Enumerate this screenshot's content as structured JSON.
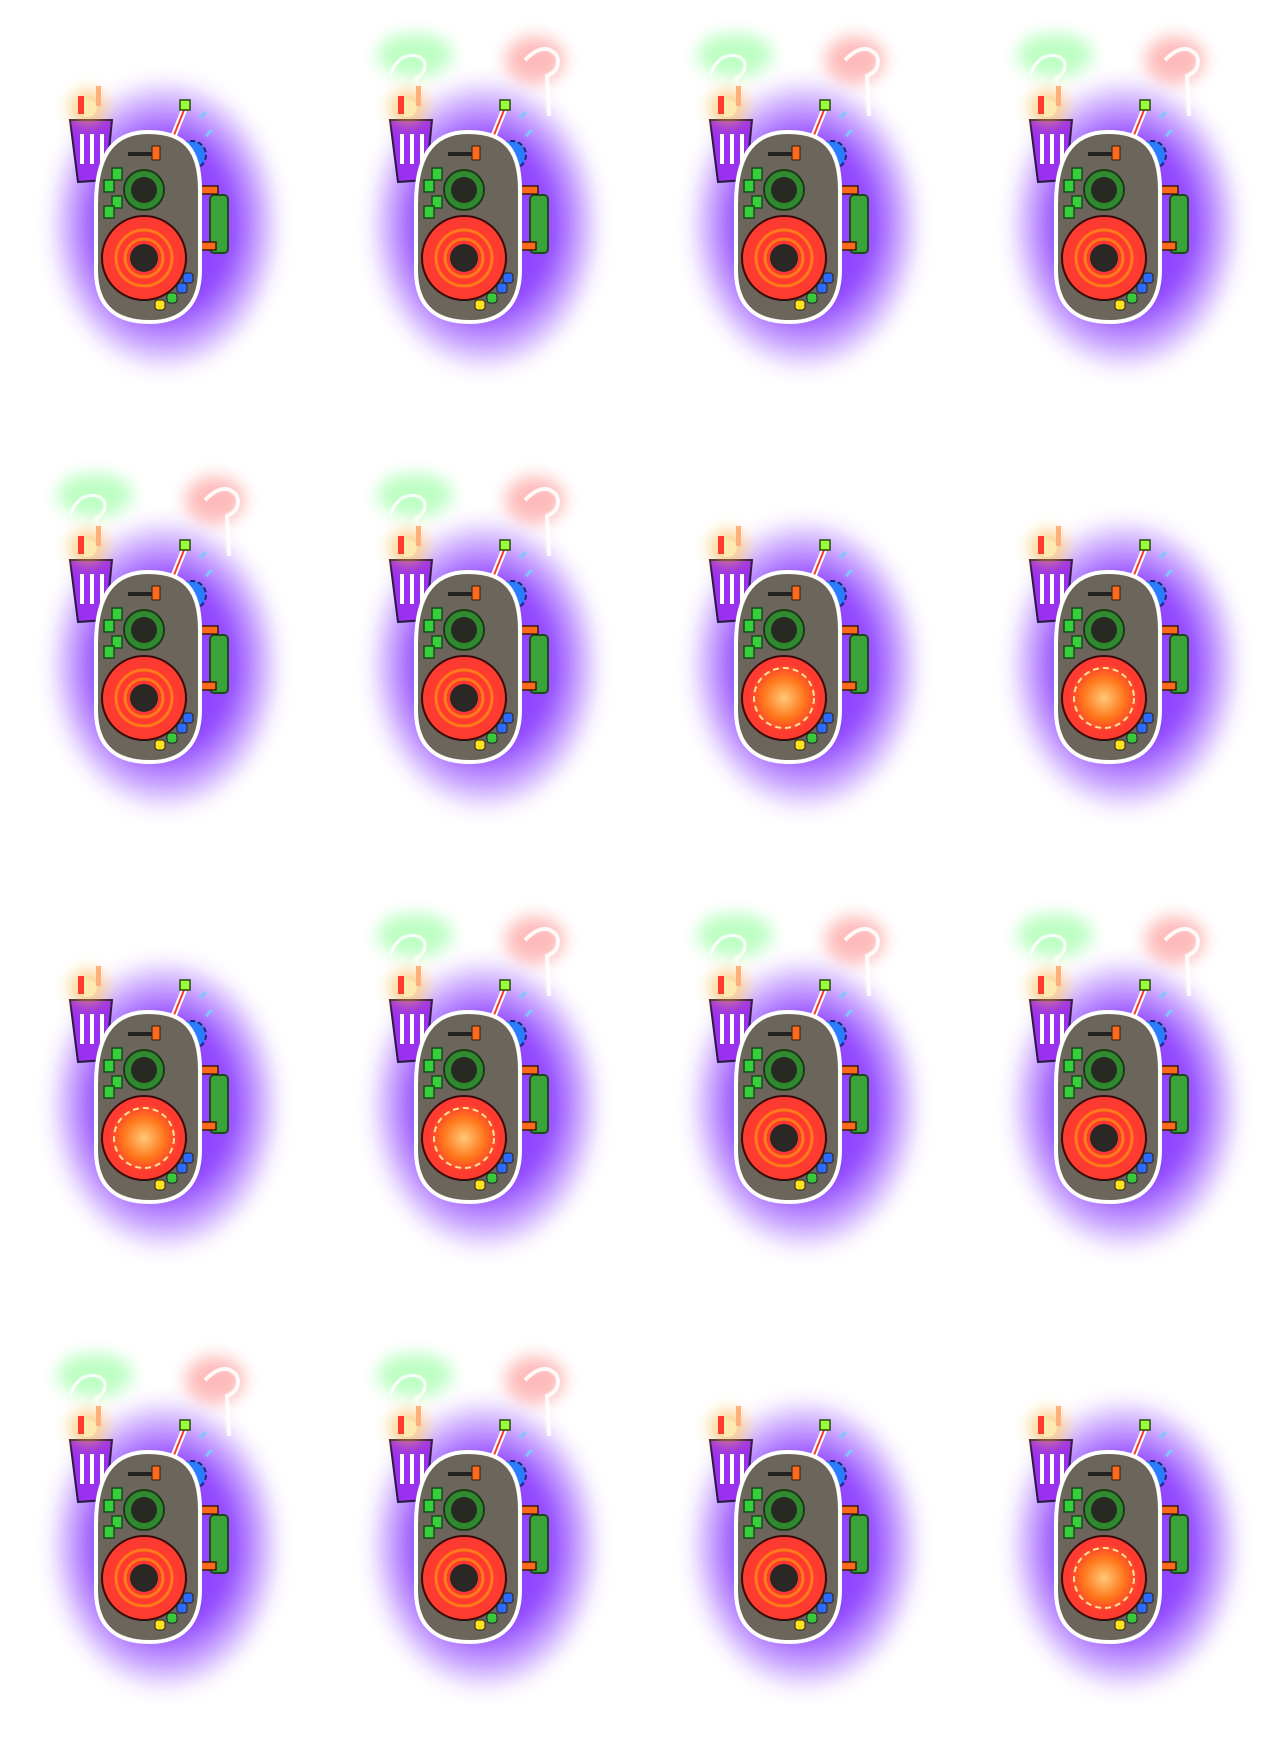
{
  "sheet": {
    "title": "",
    "frame_count": 16,
    "columns": 4,
    "rows": 4,
    "background": "#ffffff"
  },
  "palette": {
    "body": "#6b655c",
    "body_outline": "#ffffff",
    "aura": "#8a3bff",
    "core_ring": "#ff3b2f",
    "core_inner": "#ff7a1a",
    "core_center": "#2b2724",
    "dial_ring": "#2f8a2f",
    "dial_center": "#262a22",
    "indicator_green": "#36d13a",
    "pipe_orange": "#ff6a1a",
    "tank_green": "#3aa33a",
    "canister_purple": "#9a2ff0",
    "gear_blue": "#2d7bff",
    "antenna_tip": "#9bff3a",
    "gem_yellow": "#ffe01a",
    "gem_green": "#36c83a",
    "gem_blue": "#2d6bff",
    "flame": "#ffb23a",
    "smoke_green": "#7dff8a",
    "smoke_red": "#ff6b6b",
    "spark_blue": "#7fc8ff"
  },
  "frames": [
    {
      "flame": true,
      "smoke": false,
      "core_burst": false
    },
    {
      "flame": true,
      "smoke": true,
      "core_burst": false
    },
    {
      "flame": true,
      "smoke": true,
      "core_burst": false
    },
    {
      "flame": true,
      "smoke": true,
      "core_burst": false
    },
    {
      "flame": true,
      "smoke": true,
      "core_burst": false
    },
    {
      "flame": true,
      "smoke": true,
      "core_burst": false
    },
    {
      "flame": true,
      "smoke": false,
      "core_burst": true
    },
    {
      "flame": true,
      "smoke": false,
      "core_burst": true
    },
    {
      "flame": true,
      "smoke": false,
      "core_burst": true
    },
    {
      "flame": true,
      "smoke": true,
      "core_burst": true
    },
    {
      "flame": true,
      "smoke": true,
      "core_burst": false
    },
    {
      "flame": true,
      "smoke": true,
      "core_burst": false
    },
    {
      "flame": true,
      "smoke": true,
      "core_burst": false
    },
    {
      "flame": true,
      "smoke": true,
      "core_burst": false
    },
    {
      "flame": true,
      "smoke": false,
      "core_burst": false
    },
    {
      "flame": true,
      "smoke": false,
      "core_burst": true
    }
  ]
}
